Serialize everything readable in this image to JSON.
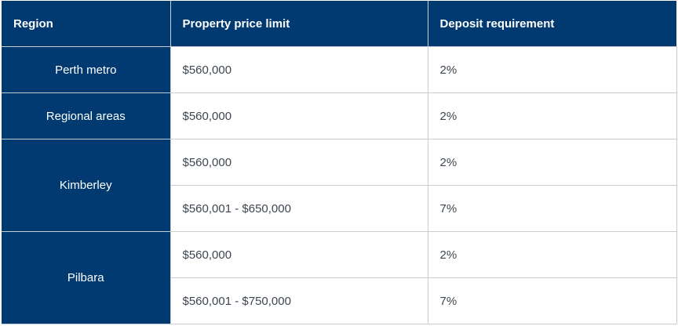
{
  "table": {
    "headers": {
      "region": "Region",
      "price": "Property price limit",
      "deposit": "Deposit requirement"
    },
    "rows": [
      {
        "region": "Perth metro",
        "price": "$560,000",
        "deposit": "2%"
      },
      {
        "region": "Regional areas",
        "price": "$560,000",
        "deposit": "2%"
      },
      {
        "region": "Kimberley",
        "tiers": [
          {
            "price": "$560,000",
            "deposit": "2%"
          },
          {
            "price": "$560,001 - $650,000",
            "deposit": "7%"
          }
        ]
      },
      {
        "region": "Pilbara",
        "tiers": [
          {
            "price": "$560,000",
            "deposit": "2%"
          },
          {
            "price": "$560,001 - $750,000",
            "deposit": "7%"
          }
        ]
      }
    ]
  }
}
